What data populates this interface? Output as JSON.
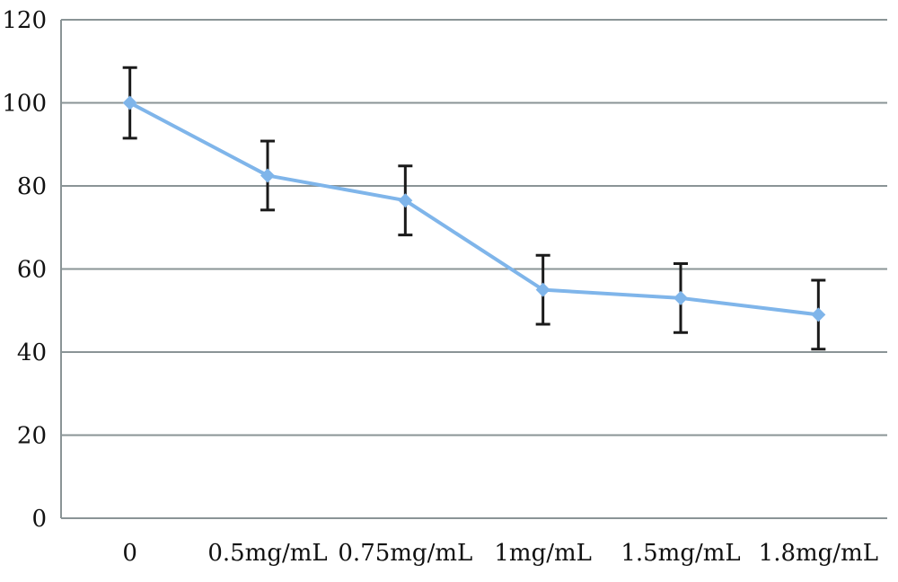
{
  "colors": {
    "series": "#7fb5ea",
    "marker": "#7fb5ea",
    "grid": "#8a9496",
    "error_bar": "#1a1a1a",
    "text": "#111111"
  },
  "chart_data": {
    "type": "line",
    "title": "",
    "xlabel": "",
    "ylabel": "",
    "categories": [
      "0",
      "0.5mg/mL",
      "0.75mg/mL",
      "1mg/mL",
      "1.5mg/mL",
      "1.8mg/mL"
    ],
    "series": [
      {
        "values": [
          100,
          82.5,
          76.5,
          55,
          53,
          49
        ],
        "error": [
          8.5,
          8.3,
          8.3,
          8.3,
          8.3,
          8.3
        ],
        "marker": "diamond"
      }
    ],
    "ylim": [
      0,
      120
    ],
    "yticks": [
      0,
      20,
      40,
      60,
      80,
      100,
      120
    ],
    "ytick_labels": [
      "0",
      "20",
      "40",
      "60",
      "80",
      "100",
      "120"
    ],
    "grid": "horizontal",
    "legend": "none"
  }
}
